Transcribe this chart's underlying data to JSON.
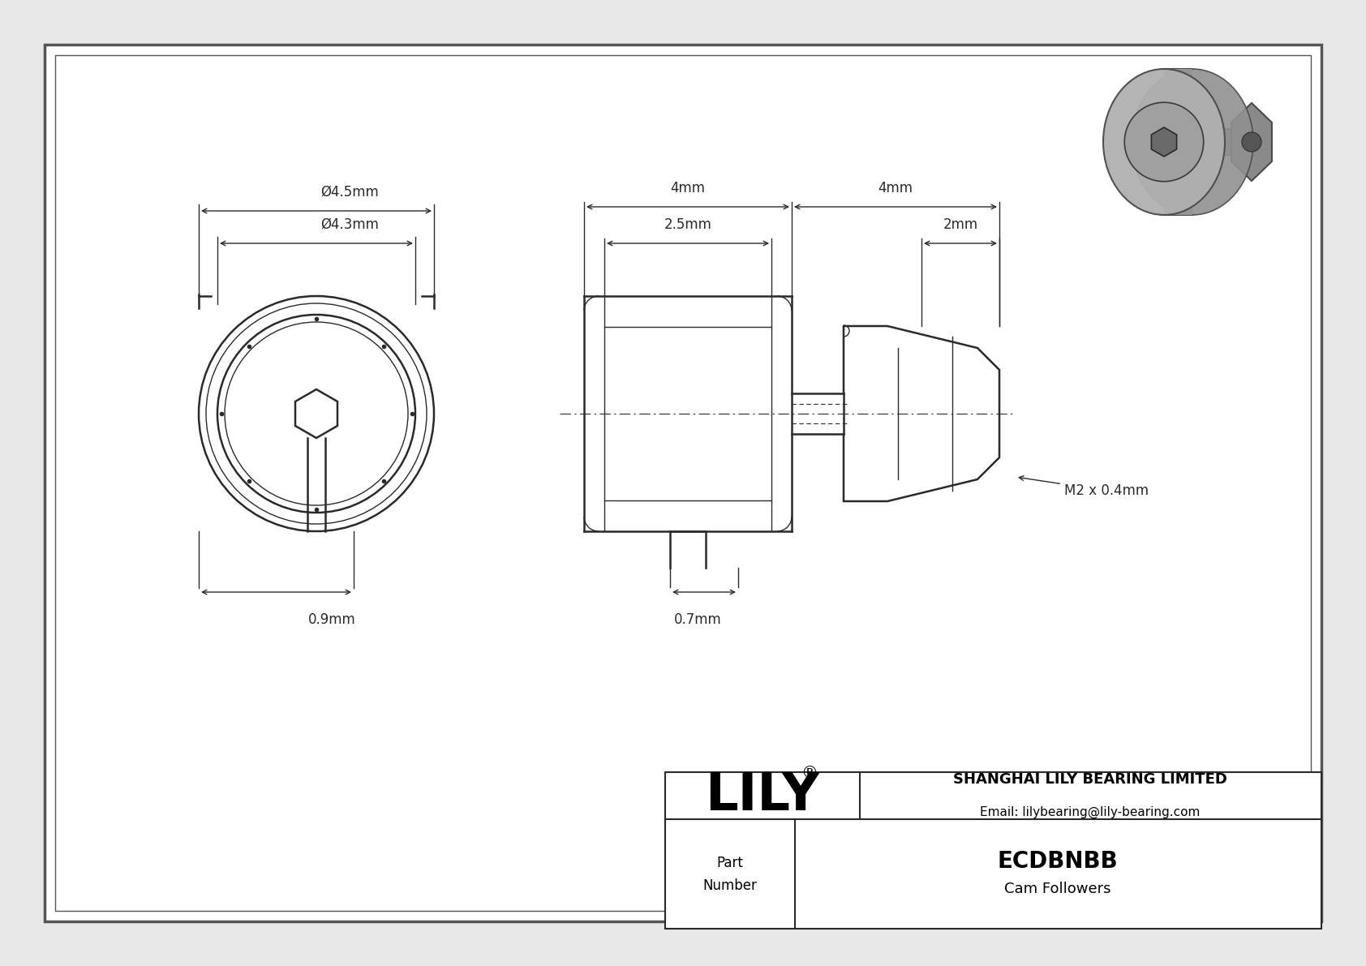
{
  "bg_color": "#e8e8e8",
  "drawing_bg": "#ffffff",
  "line_color": "#2a2a2a",
  "dim_color": "#2a2a2a",
  "part_number": "ECDBNBB",
  "part_type": "Cam Followers",
  "company": "SHANGHAI LILY BEARING LIMITED",
  "email": "Email: lilybearing@lily-bearing.com",
  "logo": "LILY",
  "dim_outer": "Ø4.5mm",
  "dim_inner": "Ø4.3mm",
  "dim_stub": "0.9mm",
  "dim_body": "2.5mm",
  "dim_left": "4mm",
  "dim_right": "4mm",
  "dim_2mm": "2mm",
  "dim_bottom": "0.7mm",
  "dim_thread": "M2 x 0.4mm"
}
